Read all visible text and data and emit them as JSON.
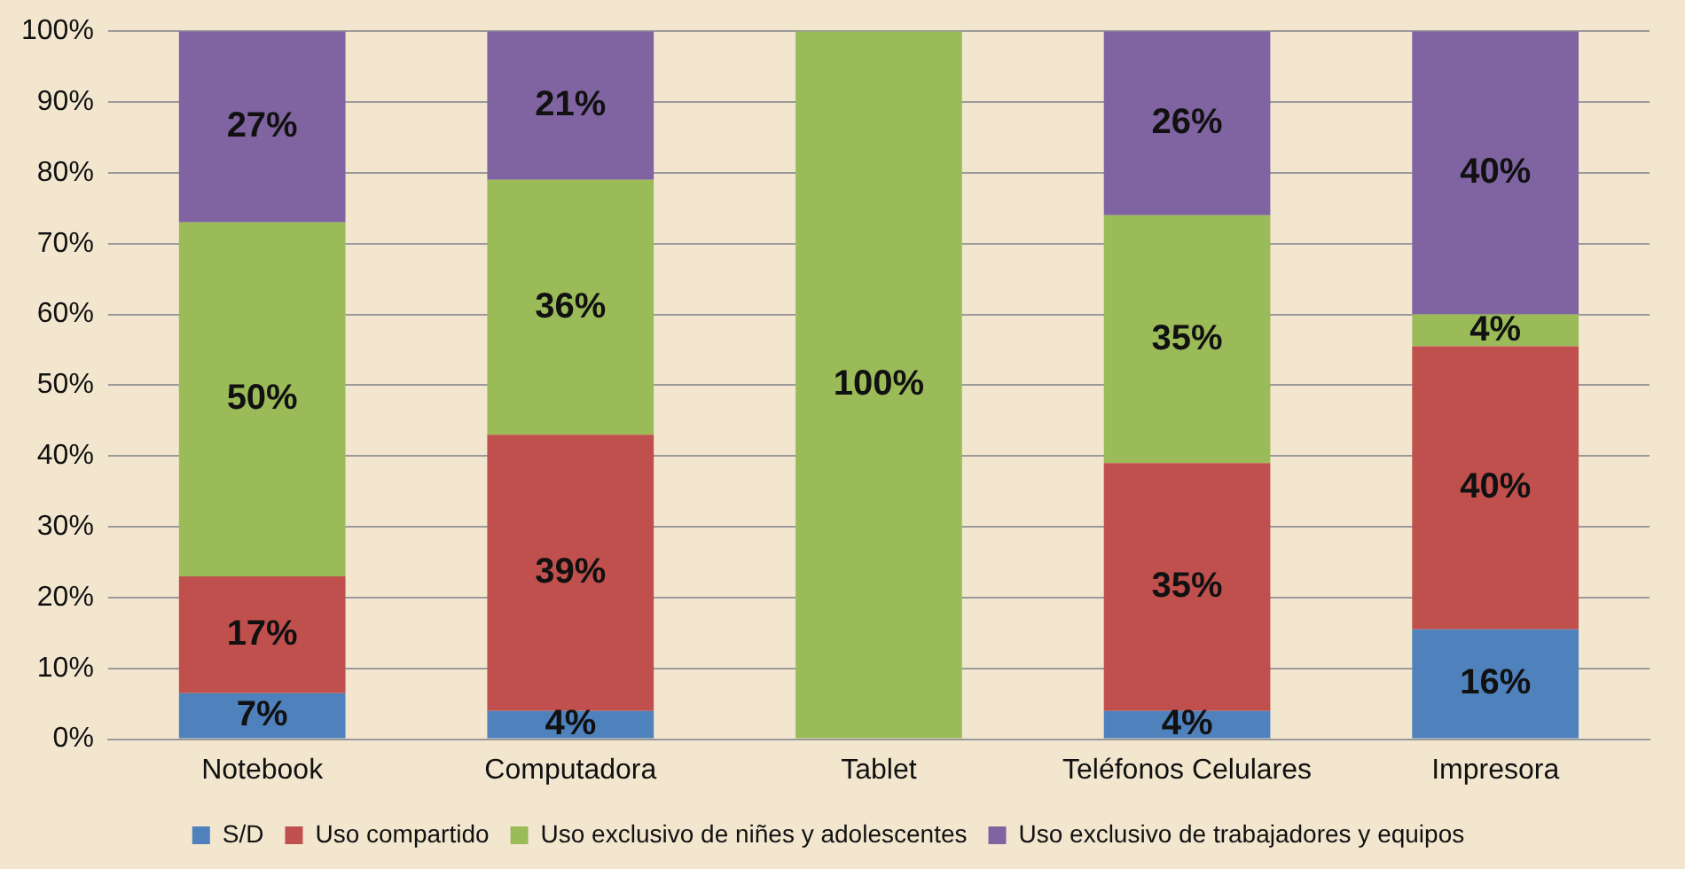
{
  "chart_data": {
    "type": "bar",
    "stacked": true,
    "categories": [
      "Notebook",
      "Computadora",
      "Tablet",
      "Teléfonos Celulares",
      "Impresora"
    ],
    "series": [
      {
        "name": "S/D",
        "color": "#4f81bd",
        "values": [
          6.5,
          4,
          0,
          4,
          15.5
        ],
        "value_labels": [
          "7%",
          "4%",
          null,
          "4%",
          "16%"
        ]
      },
      {
        "name": "Uso compartido",
        "color": "#c0504d",
        "values": [
          16.5,
          39,
          0,
          35,
          40
        ],
        "value_labels": [
          "17%",
          "39%",
          null,
          "35%",
          "40%"
        ]
      },
      {
        "name": "Uso exclusivo de niñes y adolescentes",
        "color": "#9bbb59",
        "values": [
          50,
          36,
          100,
          35,
          4.5
        ],
        "value_labels": [
          "50%",
          "36%",
          "100%",
          "35%",
          "4%"
        ]
      },
      {
        "name": "Uso exclusivo de trabajadores y equipos",
        "color": "#8064a2",
        "values": [
          27,
          21,
          0,
          26,
          40
        ],
        "value_labels": [
          "27%",
          "21%",
          null,
          "26%",
          "40%"
        ]
      }
    ],
    "ylim": [
      0,
      100
    ],
    "yticks": [
      {
        "value": 0,
        "label": "0%"
      },
      {
        "value": 10,
        "label": "10%"
      },
      {
        "value": 20,
        "label": "20%"
      },
      {
        "value": 30,
        "label": "30%"
      },
      {
        "value": 40,
        "label": "40%"
      },
      {
        "value": 50,
        "label": "50%"
      },
      {
        "value": 60,
        "label": "60%"
      },
      {
        "value": 70,
        "label": "70%"
      },
      {
        "value": 80,
        "label": "80%"
      },
      {
        "value": 90,
        "label": "90%"
      },
      {
        "value": 100,
        "label": "100%"
      }
    ],
    "grid": "y",
    "legend": "bottom"
  }
}
